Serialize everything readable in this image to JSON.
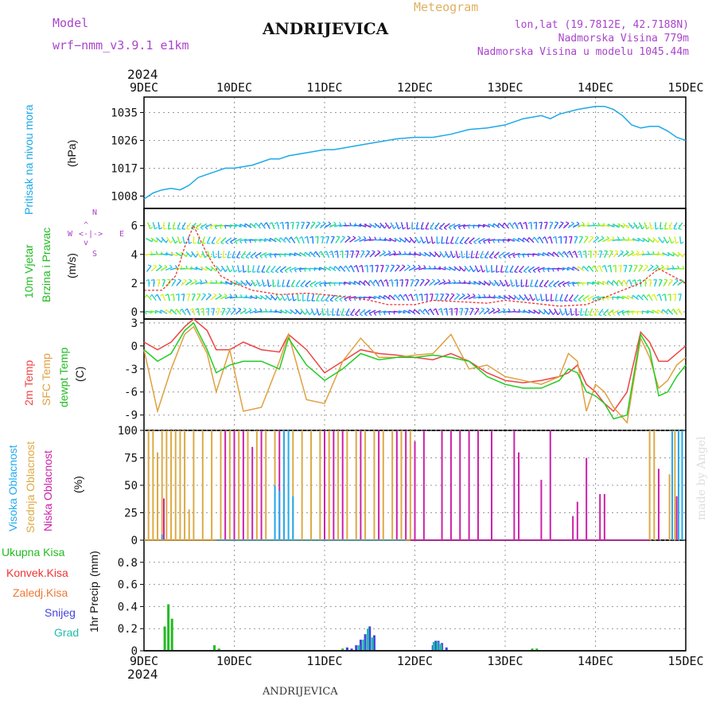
{
  "header": {
    "model_label": "Model",
    "model_name": "wrf−nmm_v3.9.1  e1km",
    "station_title": "ANDRIJEVICA",
    "meteogram_label": "Meteogram",
    "location_line": "lon,lat (19.7812E, 42.7188N)",
    "elevation_line": "Nadmorska Visina 779m",
    "model_elevation_line": "Nadmorska Visina u modelu 1045.44m",
    "footer_title": "ANDRIJEVICA",
    "watermark": "made by Angel"
  },
  "colors": {
    "pressure": "#1ea8e8",
    "wind_label": "#22bb22",
    "temp2m": "#ee4444",
    "sfc": "#e0a040",
    "dewpt": "#22cc22",
    "cloud_high": "#22aaee",
    "cloud_mid": "#ddaa44",
    "cloud_low": "#cc22aa",
    "precip_total": "#22bb22",
    "precip_conv": "#ee3333",
    "precip_freeze": "#ee7733",
    "precip_snow": "#4444dd",
    "precip_grad": "#22bbaa",
    "grid": "#999999"
  },
  "x_axis": {
    "year": "2024",
    "labels": [
      "9DEC",
      "10DEC",
      "11DEC",
      "12DEC",
      "13DEC",
      "14DEC",
      "15DEC"
    ]
  },
  "chart_data": [
    {
      "type": "line",
      "name": "pressure",
      "ylabel": "Pritisak na nivou mora",
      "unit": "(hPa)",
      "ylim": [
        1004,
        1040
      ],
      "yticks": [
        1008,
        1017,
        1026,
        1035
      ],
      "x": [
        0,
        0.1,
        0.2,
        0.3,
        0.4,
        0.5,
        0.6,
        0.7,
        0.8,
        0.9,
        1.0,
        1.2,
        1.4,
        1.5,
        1.6,
        1.8,
        2.0,
        2.1,
        2.2,
        2.4,
        2.5,
        2.6,
        2.8,
        3.0,
        3.2,
        3.4,
        3.6,
        3.8,
        4.0,
        4.2,
        4.4,
        4.5,
        4.6,
        4.8,
        5.0,
        5.1,
        5.2,
        5.3,
        5.4,
        5.5,
        5.6,
        5.7,
        5.8,
        5.9,
        6.0
      ],
      "series": [
        {
          "values": [
            1007,
            1009,
            1010,
            1010.5,
            1010,
            1011.5,
            1014,
            1015,
            1016,
            1017,
            1017,
            1018,
            1020,
            1020,
            1021,
            1022,
            1023,
            1023,
            1023.5,
            1024.5,
            1025,
            1025.5,
            1026.5,
            1027,
            1027,
            1028,
            1029.5,
            1030,
            1031,
            1033,
            1034,
            1033,
            1034.5,
            1036,
            1037,
            1037,
            1036,
            1034,
            1031,
            1030,
            1030.5,
            1030.5,
            1029,
            1027,
            1026
          ]
        }
      ]
    },
    {
      "type": "scatter",
      "name": "wind",
      "ylabel_line1": "10m Vjetar",
      "ylabel_line2": "Brzina i Pravac",
      "unit": "(m/s)",
      "compass": {
        "n": "N",
        "s": "S",
        "w": "W",
        "e": "E"
      },
      "ylim": [
        -0.5,
        7.2
      ],
      "yticks": [
        0,
        2,
        4,
        6
      ],
      "speed_x": [
        0,
        0.2,
        0.35,
        0.45,
        0.55,
        0.7,
        0.85,
        1.0,
        1.2,
        1.5,
        1.8,
        2.0,
        2.3,
        2.5,
        2.7,
        3.0,
        3.2,
        3.5,
        3.8,
        4.0,
        4.3,
        4.6,
        4.9,
        5.1,
        5.3,
        5.5,
        5.7,
        5.85,
        6.0
      ],
      "speed_values": [
        1.5,
        1.5,
        2.5,
        4.5,
        6.0,
        4.0,
        2.5,
        2.0,
        1.5,
        1.2,
        1.3,
        1.2,
        1.0,
        0.8,
        0.5,
        0.5,
        0.8,
        0.7,
        0.6,
        0.8,
        0.6,
        0.4,
        0.5,
        1.0,
        1.5,
        2.0,
        3.0,
        2.5,
        2.0
      ]
    },
    {
      "type": "line",
      "name": "temperature",
      "ylabel_line1": "2m Temp",
      "ylabel_line2": "SFC Temp",
      "ylabel_line3": "dewpt Temp",
      "unit": "(C)",
      "ylim": [
        -11,
        3.5
      ],
      "yticks": [
        3,
        0,
        -3,
        -6,
        -9
      ],
      "x": [
        0,
        0.15,
        0.3,
        0.45,
        0.55,
        0.7,
        0.8,
        0.95,
        1.1,
        1.3,
        1.5,
        1.6,
        1.8,
        2.0,
        2.2,
        2.4,
        2.6,
        2.8,
        3.0,
        3.2,
        3.4,
        3.6,
        3.8,
        4.0,
        4.2,
        4.4,
        4.6,
        4.7,
        4.8,
        4.9,
        5.0,
        5.1,
        5.2,
        5.35,
        5.5,
        5.6,
        5.7,
        5.8,
        5.9,
        6.0
      ],
      "series": [
        {
          "name": "2m Temp",
          "values": [
            0.5,
            -0.5,
            0.5,
            2.5,
            3.5,
            2.0,
            -0.5,
            -0.5,
            0.5,
            -0.5,
            -0.8,
            1.5,
            -0.5,
            -3.5,
            -2.0,
            -0.5,
            -1.0,
            -1.2,
            -1.5,
            -1.8,
            -1.0,
            -2.0,
            -3.5,
            -4.5,
            -4.8,
            -4.5,
            -4.0,
            -3.5,
            -2.5,
            -5.0,
            -6.0,
            -7.5,
            -8.5,
            -6.0,
            1.8,
            0.5,
            -2.0,
            -2.0,
            -1.0,
            0
          ]
        },
        {
          "name": "SFC Temp",
          "values": [
            -0.5,
            -8.5,
            -3.0,
            1.5,
            2.5,
            -1.0,
            -6.0,
            -0.5,
            -8.5,
            -8.0,
            -2.0,
            1.5,
            -7.0,
            -7.5,
            -2.0,
            1.0,
            -1.5,
            -1.5,
            -1.2,
            -1.0,
            1.5,
            -3.0,
            -2.5,
            -4.0,
            -4.5,
            -5.0,
            -4.0,
            -1.0,
            -2.0,
            -8.5,
            -5.0,
            -6.0,
            -8.0,
            -10.0,
            1.0,
            -1.5,
            -5.5,
            -4.5,
            -2.5,
            -1.5
          ]
        },
        {
          "name": "dewpt Temp",
          "values": [
            -0.5,
            -2.0,
            -1.0,
            2.0,
            3.0,
            -0.5,
            -3.5,
            -2.5,
            -2.0,
            -2.0,
            -3.0,
            1.0,
            -2.5,
            -4.5,
            -3.0,
            -1.0,
            -1.8,
            -1.5,
            -1.5,
            -1.2,
            -1.5,
            -2.0,
            -4.0,
            -5.0,
            -5.5,
            -5.5,
            -4.5,
            -3.0,
            -3.5,
            -6.0,
            -6.5,
            -7.5,
            -9.5,
            -9.0,
            1.5,
            -0.5,
            -6.5,
            -6.0,
            -4.0,
            -2.5
          ]
        }
      ]
    },
    {
      "type": "bar",
      "name": "cloud_cover",
      "ylabel_line1": "Visoka Oblacnost",
      "ylabel_line2": "Srednja Oblacnost",
      "ylabel_line3": "Niska Oblacnost",
      "unit": "(%)",
      "ylim": [
        0,
        100
      ],
      "yticks": [
        0,
        25,
        50,
        75,
        100
      ],
      "series": [
        {
          "name": "Visoka Oblacnost",
          "x": [
            0.2,
            1.45,
            1.5,
            1.55,
            1.6,
            1.65,
            5.85,
            5.92,
            5.96
          ],
          "values": [
            5,
            50,
            45,
            100,
            100,
            40,
            100,
            100,
            100
          ]
        },
        {
          "name": "Srednja Oblacnost",
          "x": [
            0.05,
            0.1,
            0.15,
            0.2,
            0.25,
            0.3,
            0.35,
            0.4,
            0.45,
            0.5,
            0.55,
            0.65,
            0.75,
            0.85,
            0.95,
            1.05,
            1.15,
            1.25,
            1.35,
            1.45,
            1.55,
            1.65,
            1.75,
            1.85,
            1.95,
            2.05,
            2.15,
            2.25,
            2.35,
            2.45,
            2.55,
            2.65,
            2.75,
            2.85,
            2.95,
            5.6,
            5.65,
            5.82,
            5.88
          ],
          "values": [
            100,
            100,
            80,
            100,
            100,
            100,
            100,
            100,
            100,
            28,
            100,
            100,
            100,
            100,
            100,
            100,
            100,
            100,
            100,
            100,
            100,
            100,
            100,
            100,
            100,
            100,
            100,
            100,
            100,
            100,
            100,
            100,
            100,
            100,
            100,
            100,
            100,
            60,
            100
          ]
        },
        {
          "name": "Niska Oblacnost",
          "x": [
            0.22,
            0.9,
            1.0,
            1.1,
            1.2,
            1.3,
            1.5,
            2.0,
            2.1,
            2.2,
            2.4,
            2.6,
            2.8,
            2.9,
            3.0,
            3.1,
            3.3,
            3.4,
            3.5,
            3.6,
            3.7,
            3.85,
            4.1,
            4.15,
            4.4,
            4.5,
            4.75,
            4.8,
            4.9,
            5.05,
            5.1,
            5.7,
            5.9
          ],
          "values": [
            38,
            100,
            100,
            100,
            85,
            100,
            100,
            100,
            100,
            100,
            100,
            100,
            100,
            100,
            90,
            100,
            100,
            100,
            100,
            100,
            100,
            100,
            100,
            80,
            55,
            100,
            22,
            35,
            75,
            42,
            42,
            65,
            40
          ]
        }
      ]
    },
    {
      "type": "bar",
      "name": "precipitation",
      "ylabel_line1": "1hr Precip",
      "unit": "(mm)",
      "legend": [
        "Ukupna Kisa",
        "Konvek.Kisa",
        "Zaledj.Kisa",
        "Snijeg",
        "Grad"
      ],
      "ylim": [
        0,
        1.0
      ],
      "yticks": [
        0,
        0.2,
        0.4,
        0.6,
        0.8
      ],
      "series": [
        {
          "name": "Ukupna Kisa",
          "x": [
            0.23,
            0.27,
            0.31,
            0.78,
            0.83,
            2.2,
            2.25,
            4.3,
            4.35
          ],
          "values": [
            0.22,
            0.42,
            0.29,
            0.05,
            0.02,
            0.02,
            0.02,
            0.02,
            0.02
          ]
        },
        {
          "name": "Snijeg",
          "x": [
            2.25,
            2.3,
            2.35,
            2.4,
            2.45,
            2.5,
            2.55,
            3.2,
            3.23,
            3.26,
            3.3,
            3.35
          ],
          "values": [
            0.03,
            0.02,
            0.05,
            0.1,
            0.15,
            0.22,
            0.14,
            0.05,
            0.09,
            0.09,
            0.07,
            0.03
          ]
        },
        {
          "name": "Grad",
          "x": [
            2.38,
            2.43,
            2.48,
            2.53,
            3.21,
            3.25,
            3.29
          ],
          "values": [
            0.05,
            0.1,
            0.2,
            0.12,
            0.08,
            0.08,
            0.06
          ]
        }
      ]
    }
  ]
}
